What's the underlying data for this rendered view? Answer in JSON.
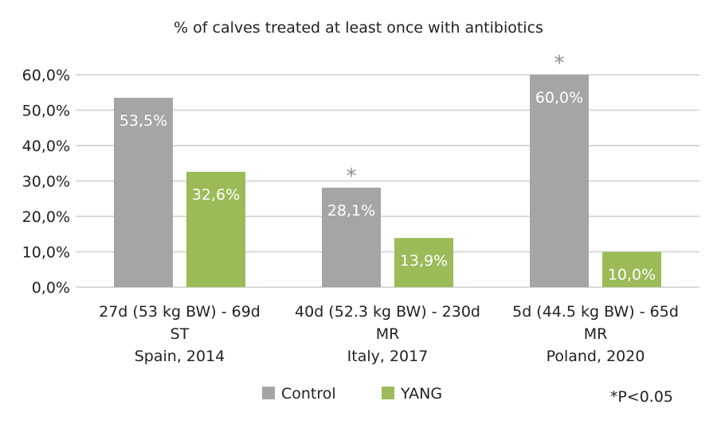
{
  "chart_data": {
    "type": "bar",
    "title": "% of calves treated at least once with antibiotics",
    "xlabel": "",
    "ylabel": "",
    "ylim": [
      0,
      60
    ],
    "yticks": [
      "0,0%",
      "10,0%",
      "20,0%",
      "30,0%",
      "40,0%",
      "50,0%",
      "60,0%"
    ],
    "ytick_values": [
      0,
      10,
      20,
      30,
      40,
      50,
      60
    ],
    "grid": true,
    "categories": [
      [
        "27d (53 kg BW) - 69d",
        "ST",
        "Spain, 2014"
      ],
      [
        "40d (52.3 kg BW) - 230d",
        "MR",
        "Italy, 2017"
      ],
      [
        "5d (44.5 kg BW) - 65d",
        "MR",
        "Poland, 2020"
      ]
    ],
    "series": [
      {
        "name": "Control",
        "color": "#a5a5a5",
        "values": [
          53.5,
          28.1,
          60.0
        ],
        "labels": [
          "53,5%",
          "28,1%",
          "60,0%"
        ]
      },
      {
        "name": "YANG",
        "color": "#9bbb59",
        "values": [
          32.6,
          13.9,
          10.0
        ],
        "labels": [
          "32,6%",
          "13,9%",
          "10,0%"
        ]
      }
    ],
    "significance_marker": "*",
    "significant": [
      false,
      true,
      true
    ],
    "legend_position": "bottom",
    "annotation": "*P<0.05"
  }
}
